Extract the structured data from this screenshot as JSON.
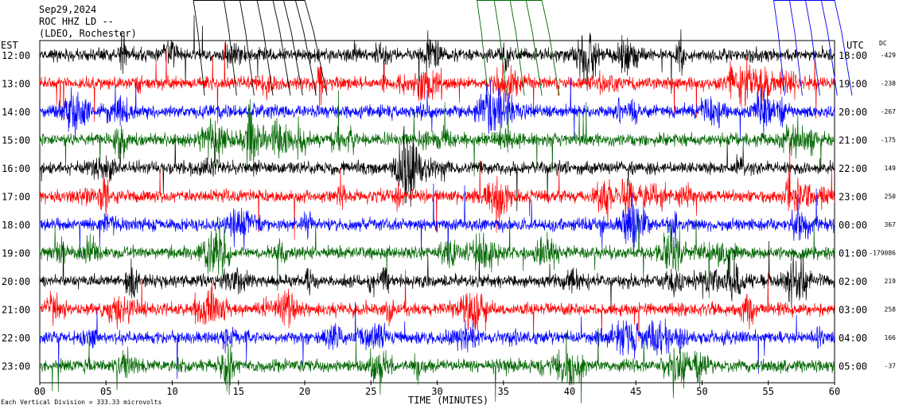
{
  "header": {
    "date": "Sep29,2024",
    "station": "ROC HHZ LD --",
    "network": "(LDEO, Rochester)"
  },
  "left_tz_label": "EST",
  "right_tz_label": "UTC",
  "dc_header": "DC",
  "footer": {
    "scale_note": "Each Vertical Division = 333.33 microvolts",
    "xlabel": "TIME (MINUTES)"
  },
  "colors": {
    "black": "#000000",
    "red": "#ff0000",
    "blue": "#0000ff",
    "green": "#006600"
  },
  "chart_data": {
    "type": "line",
    "subtype": "helicorder",
    "xlabel": "TIME (MINUTES)",
    "xlim": [
      0,
      60
    ],
    "x_ticks": [
      "00",
      "05",
      "10",
      "15",
      "20",
      "25",
      "30",
      "35",
      "40",
      "45",
      "50",
      "55",
      "60"
    ],
    "color_cycle": [
      "black",
      "red",
      "blue",
      "green"
    ],
    "rows": [
      {
        "local": "12:00",
        "utc": "18:00",
        "dc": "-429",
        "color": "black"
      },
      {
        "local": "13:00",
        "utc": "19:00",
        "dc": "-238",
        "color": "red"
      },
      {
        "local": "14:00",
        "utc": "20:00",
        "dc": "-267",
        "color": "blue"
      },
      {
        "local": "15:00",
        "utc": "21:00",
        "dc": "-175",
        "color": "green"
      },
      {
        "local": "16:00",
        "utc": "22:00",
        "dc": "149",
        "color": "black"
      },
      {
        "local": "17:00",
        "utc": "23:00",
        "dc": "250",
        "color": "red"
      },
      {
        "local": "18:00",
        "utc": "00:00",
        "dc": "367",
        "color": "blue"
      },
      {
        "local": "19:00",
        "utc": "01:00",
        "dc": "-179086",
        "color": "green"
      },
      {
        "local": "20:00",
        "utc": "02:00",
        "dc": "219",
        "color": "black"
      },
      {
        "local": "21:00",
        "utc": "03:00",
        "dc": "258",
        "color": "red"
      },
      {
        "local": "22:00",
        "utc": "04:00",
        "dc": "166",
        "color": "blue"
      },
      {
        "local": "23:00",
        "utc": "05:00",
        "dc": "-37",
        "color": "green"
      }
    ],
    "top_clipped_traces": [
      {
        "color": "black",
        "x_minutes": [
          11.6,
          13.9,
          15.1,
          16.4,
          17.6,
          18.4,
          19.3,
          20.0
        ]
      },
      {
        "color": "green",
        "x_minutes": [
          33.0,
          34.3,
          35.5,
          36.7,
          37.9
        ]
      },
      {
        "color": "blue",
        "x_minutes": [
          55.4,
          56.6,
          57.8,
          59.0,
          60.0
        ]
      }
    ]
  }
}
